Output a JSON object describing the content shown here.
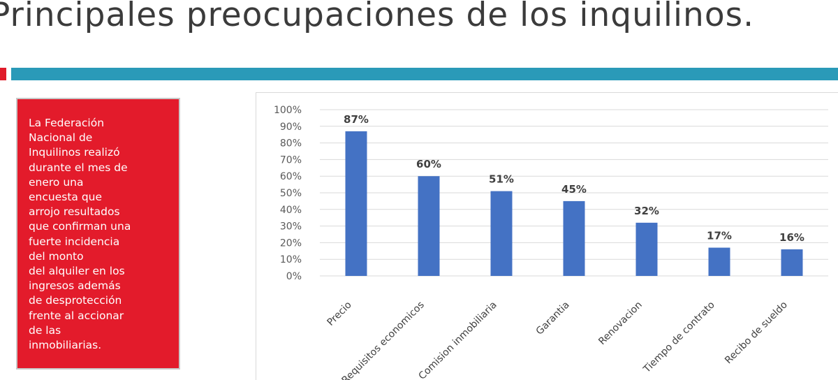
{
  "slide": {
    "title": "Principales preocupaciones de los inquilinos."
  },
  "sidebar": {
    "lines": [
      "La Federación",
      "Nacional de",
      "Inquilinos realizó",
      "durante el mes de",
      "enero una",
      "encuesta que",
      "arrojo resultados",
      "que confirman una",
      "fuerte incidencia",
      "del monto",
      "del alquiler en los",
      "ingresos además",
      "de desprotección",
      "frente al accionar",
      "de las",
      "inmobiliarias."
    ]
  },
  "colors": {
    "bar": "#4472c4",
    "box": "#e31b2b",
    "accent_teal": "#2a9ab8",
    "accent_red": "#e01b2a"
  },
  "chart_data": {
    "type": "bar",
    "categories": [
      "Precio",
      "Requisitos economicos",
      "Comision inmobiliaria",
      "Garantia",
      "Renovacion",
      "Tiempo de contrato",
      "Recibo de sueldo"
    ],
    "values": [
      87,
      60,
      51,
      45,
      32,
      17,
      16
    ],
    "data_labels": [
      "87%",
      "60%",
      "51%",
      "45%",
      "32%",
      "17%",
      "16%"
    ],
    "y_ticks": [
      "0%",
      "10%",
      "20%",
      "30%",
      "40%",
      "50%",
      "60%",
      "70%",
      "80%",
      "90%",
      "100%"
    ],
    "ylim": [
      0,
      100
    ],
    "title": "",
    "xlabel": "",
    "ylabel": "",
    "grid": true,
    "legend": false
  }
}
